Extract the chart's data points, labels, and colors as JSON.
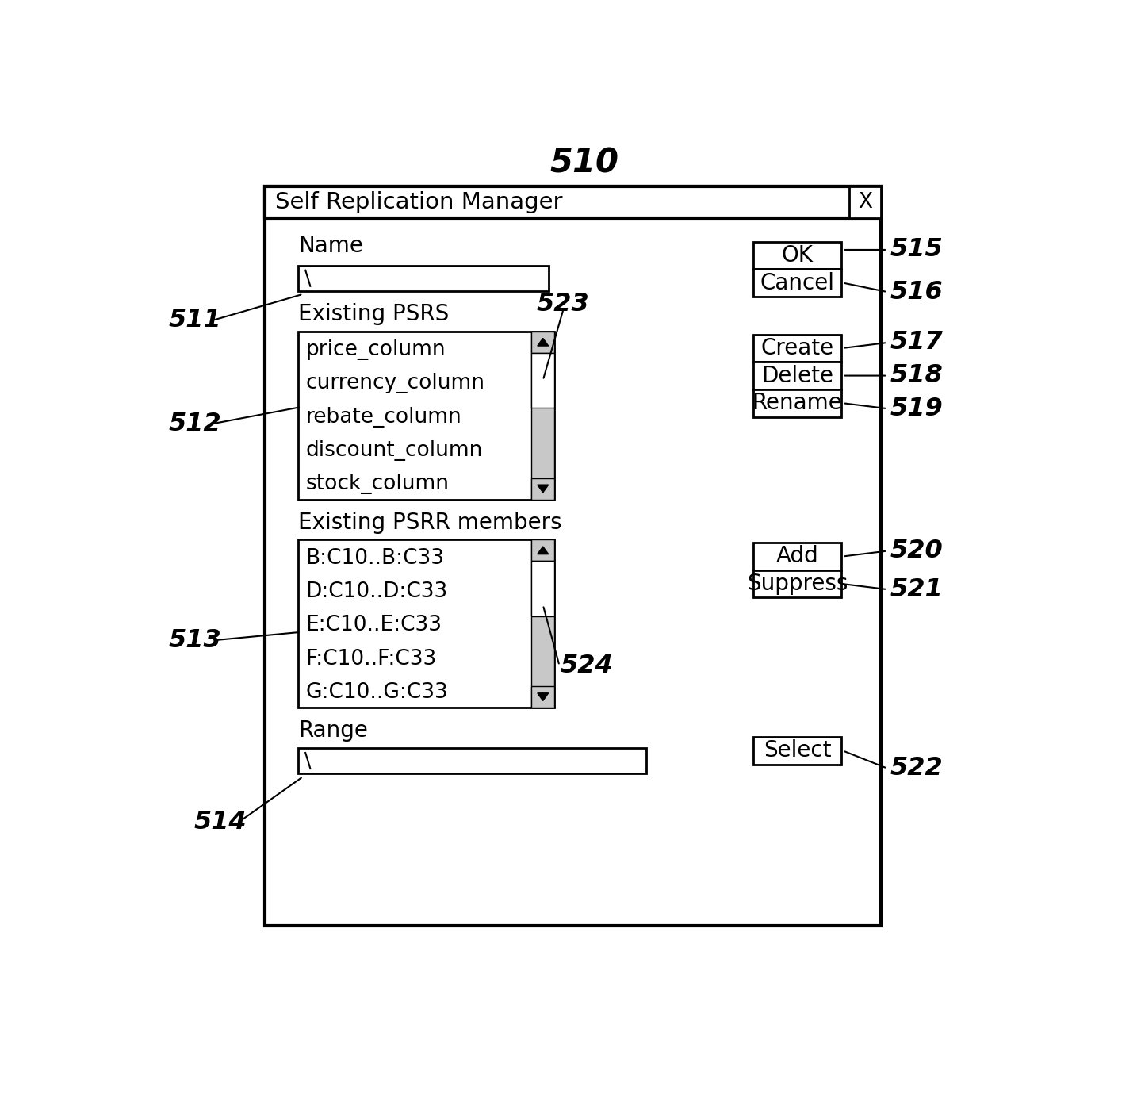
{
  "title": "510",
  "dialog_title": "Self Replication Manager",
  "close_btn": "X",
  "name_label": "Name",
  "existing_psrs_label": "Existing PSRS",
  "psrs_items": [
    "price_column",
    "currency_column",
    "rebate_column",
    "discount_column",
    "stock_column"
  ],
  "existing_psrr_label": "Existing PSRR members",
  "psrr_items": [
    "B:C10..B:C33",
    "D:C10..D:C33",
    "E:C10..E:C33",
    "F:C10..F:C33",
    "G:C10..G:C33"
  ],
  "range_label": "Range",
  "btn_ok": "OK",
  "btn_cancel": "Cancel",
  "btn_create": "Create",
  "btn_delete": "Delete",
  "btn_rename": "Rename",
  "btn_add": "Add",
  "btn_suppress": "Suppress",
  "btn_select": "Select",
  "bg_color": "#ffffff",
  "dialog_bg": "#ffffff",
  "scrollbar_track": "#c8c8c8",
  "scrollbar_thumb": "#ffffff"
}
